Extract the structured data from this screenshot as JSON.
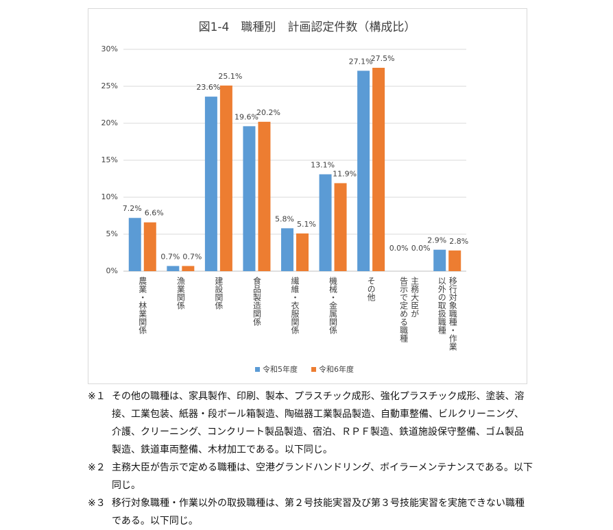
{
  "chart_data": {
    "type": "bar",
    "title": "図1-4　職種別　計画認定件数（構成比）",
    "categories": [
      [
        "農業・林業関係"
      ],
      [
        "漁業関係"
      ],
      [
        "建設関係"
      ],
      [
        "食品製造関係"
      ],
      [
        "繊維・衣服関係"
      ],
      [
        "機械・金属関係"
      ],
      [
        "その他"
      ],
      [
        "主務大臣が",
        "告示で定める職種"
      ],
      [
        "移行対象職種・作業",
        "以外の取扱職種"
      ]
    ],
    "series": [
      {
        "name": "令和5年度",
        "color": "#5b9bd5",
        "values": [
          7.2,
          0.7,
          23.6,
          19.6,
          5.8,
          13.1,
          27.1,
          0.0,
          2.9
        ],
        "value_labels": [
          "7.2%",
          "0.7%",
          "23.6%",
          "19.6%",
          "5.8%",
          "13.1%",
          "27.1%",
          "0.0%",
          "2.9%"
        ]
      },
      {
        "name": "令和6年度",
        "color": "#ed7d31",
        "values": [
          6.6,
          0.7,
          25.1,
          20.2,
          5.1,
          11.9,
          27.5,
          0.0,
          2.8
        ],
        "value_labels": [
          "6.6%",
          "0.7%",
          "25.1%",
          "20.2%",
          "5.1%",
          "11.9%",
          "27.5%",
          "0.0%",
          "2.8%"
        ]
      }
    ],
    "ylim": [
      0,
      30
    ],
    "yticks": [
      {
        "value": 0,
        "label": "0%"
      },
      {
        "value": 5,
        "label": "5%"
      },
      {
        "value": 10,
        "label": "10%"
      },
      {
        "value": 15,
        "label": "15%"
      },
      {
        "value": 20,
        "label": "20%"
      },
      {
        "value": 25,
        "label": "25%"
      },
      {
        "value": 30,
        "label": "30%"
      }
    ],
    "grid": true,
    "legend": "bottom"
  },
  "notes": [
    {
      "mark": "※１",
      "text": "その他の職種は、家具製作、印刷、製本、プラスチック成形、強化プラスチック成形、塗装、溶接、工業包装、紙器・段ボール箱製造、陶磁器工業製品製造、自動車整備、ビルクリーニング、介護、クリーニング、コンクリート製品製造、宿泊、ＲＰＦ製造、鉄道施設保守整備、ゴム製品製造、鉄道車両整備、木材加工である。以下同じ。"
    },
    {
      "mark": "※２",
      "text": "主務大臣が告示で定める職種は、空港グランドハンドリング、ボイラーメンテナンスである。以下同じ。"
    },
    {
      "mark": "※３",
      "text": "移行対象職種・作業以外の取扱職種は、第２号技能実習及び第３号技能実習を実施できない職種である。以下同じ。"
    }
  ]
}
